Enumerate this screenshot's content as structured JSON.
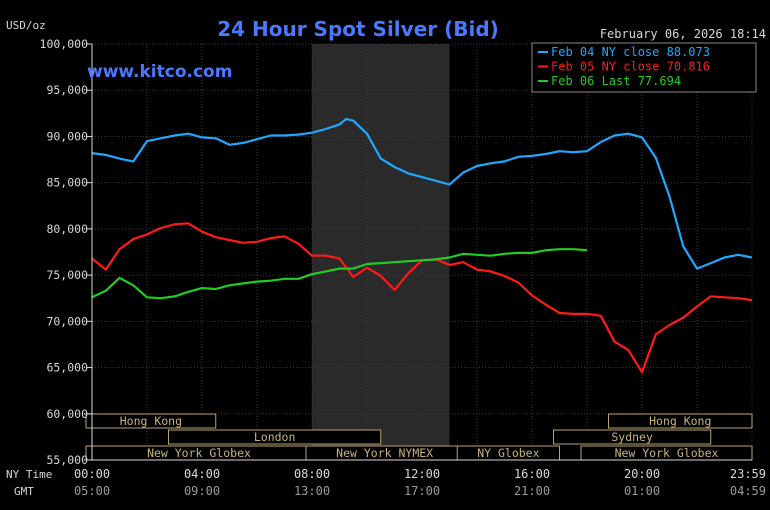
{
  "chart_data": {
    "type": "line",
    "title": "24 Hour Spot Silver (Bid)",
    "watermark": "www.kitco.com",
    "unit_label": "USD/oz",
    "timestamp": "February 06, 2026 18:14",
    "ylim": [
      55000,
      100000
    ],
    "y_ticks": [
      "100,000",
      "95,000",
      "90,000",
      "85,000",
      "80,000",
      "75,000",
      "70,000",
      "65,000",
      "60,000",
      "55,000"
    ],
    "x_range_hours": [
      0,
      24
    ],
    "x_ticks": [
      "00:00",
      "04:00",
      "08:00",
      "12:00",
      "16:00",
      "20:00",
      "23:59"
    ],
    "gmt_ticks": [
      "05:00",
      "09:00",
      "13:00",
      "17:00",
      "21:00",
      "01:00",
      "04:59"
    ],
    "x_row_labels": [
      "NY Time",
      "GMT"
    ],
    "highlight_hours": [
      8,
      13
    ],
    "colors": {
      "background": "#000000",
      "grid": "#3a3a3a",
      "axis_text": "#d8d8d8",
      "title": "#4a78ff",
      "highlight": "#2a2a2a",
      "session_bg": "#000000",
      "session_border": "#b8a36a",
      "session_text": "#c8b47a"
    },
    "sessions": [
      {
        "name": "Hong Kong",
        "start": 0,
        "end": 4.5,
        "row": 0
      },
      {
        "name": "Hong Kong",
        "start": 19,
        "end": 24,
        "row": 0
      },
      {
        "name": "London",
        "start": 3,
        "end": 10.5,
        "row": 1
      },
      {
        "name": "Sydney",
        "start": 17,
        "end": 22.5,
        "row": 1
      },
      {
        "name": "New York Globex",
        "start": 0,
        "end": 8,
        "row": 2
      },
      {
        "name": "New York NYMEX",
        "start": 8,
        "end": 13.5,
        "row": 2
      },
      {
        "name": "NY Globex",
        "start": 13.5,
        "end": 17,
        "row": 2
      },
      {
        "name": "New York Globex",
        "start": 18,
        "end": 24,
        "row": 2
      }
    ],
    "series": [
      {
        "name": "Feb 04 NY close 88.073",
        "color": "#1fa8ff",
        "x": [
          0,
          0.5,
          1,
          1.5,
          2,
          2.5,
          3,
          3.5,
          4,
          4.5,
          5,
          5.5,
          6,
          6.5,
          7,
          7.5,
          8,
          8.5,
          9,
          9.25,
          9.5,
          10,
          10.5,
          11,
          11.5,
          12,
          12.5,
          13,
          13.5,
          14,
          14.5,
          15,
          15.5,
          16,
          16.5,
          17,
          17.5,
          18,
          18.5,
          19,
          19.5,
          20,
          20.5,
          21,
          21.5,
          22,
          22.5,
          23,
          23.5,
          24
        ],
        "values": [
          88200,
          88000,
          87600,
          87300,
          89500,
          89800,
          90100,
          90300,
          89900,
          89800,
          89100,
          89300,
          89700,
          90100,
          90100,
          90200,
          90400,
          90800,
          91300,
          91900,
          91700,
          90300,
          87600,
          86700,
          86000,
          85600,
          85200,
          84800,
          86100,
          86800,
          87100,
          87300,
          87800,
          87900,
          88100,
          88400,
          88300,
          88400,
          89400,
          90100,
          90300,
          89900,
          87700,
          83500,
          78100,
          75700,
          76300,
          76900,
          77200,
          76900
        ]
      },
      {
        "name": "Feb 05 NY close 70.816",
        "color": "#ff1a1a",
        "x": [
          0,
          0.5,
          1,
          1.5,
          2,
          2.5,
          3,
          3.5,
          4,
          4.5,
          5,
          5.5,
          6,
          6.5,
          7,
          7.5,
          8,
          8.5,
          9,
          9.5,
          10,
          10.5,
          11,
          11.5,
          12,
          12.5,
          13,
          13.5,
          14,
          14.5,
          15,
          15.5,
          16,
          16.5,
          17,
          17.5,
          18,
          18.5,
          19,
          19.5,
          20,
          20.5,
          21,
          21.5,
          22,
          22.5,
          23,
          23.5,
          24
        ],
        "values": [
          76800,
          75600,
          77800,
          78900,
          79400,
          80100,
          80500,
          80600,
          79700,
          79100,
          78800,
          78500,
          78600,
          79000,
          79200,
          78400,
          77100,
          77100,
          76800,
          74800,
          75800,
          74900,
          73400,
          75200,
          76600,
          76700,
          76100,
          76400,
          75600,
          75400,
          74900,
          74200,
          72800,
          71800,
          70900,
          70800,
          70800,
          70600,
          67800,
          66900,
          64500,
          68600,
          69600,
          70400,
          71600,
          72700,
          72600,
          72500,
          72300
        ]
      },
      {
        "name": "Feb 06 Last 77.694",
        "color": "#22cc22",
        "x": [
          0,
          0.5,
          1,
          1.5,
          2,
          2.5,
          3,
          3.5,
          4,
          4.5,
          5,
          5.5,
          6,
          6.5,
          7,
          7.5,
          8,
          8.5,
          9,
          9.5,
          10,
          10.5,
          11,
          11.5,
          12,
          12.5,
          13,
          13.5,
          14,
          14.5,
          15,
          15.5,
          16,
          16.5,
          17,
          17.5,
          18
        ],
        "values": [
          72600,
          73300,
          74700,
          73900,
          72600,
          72500,
          72700,
          73200,
          73600,
          73500,
          73900,
          74100,
          74300,
          74400,
          74600,
          74600,
          75100,
          75400,
          75700,
          75700,
          76200,
          76300,
          76400,
          76500,
          76600,
          76700,
          76900,
          77300,
          77200,
          77100,
          77300,
          77400,
          77400,
          77700,
          77800,
          77800,
          77700
        ]
      }
    ]
  }
}
